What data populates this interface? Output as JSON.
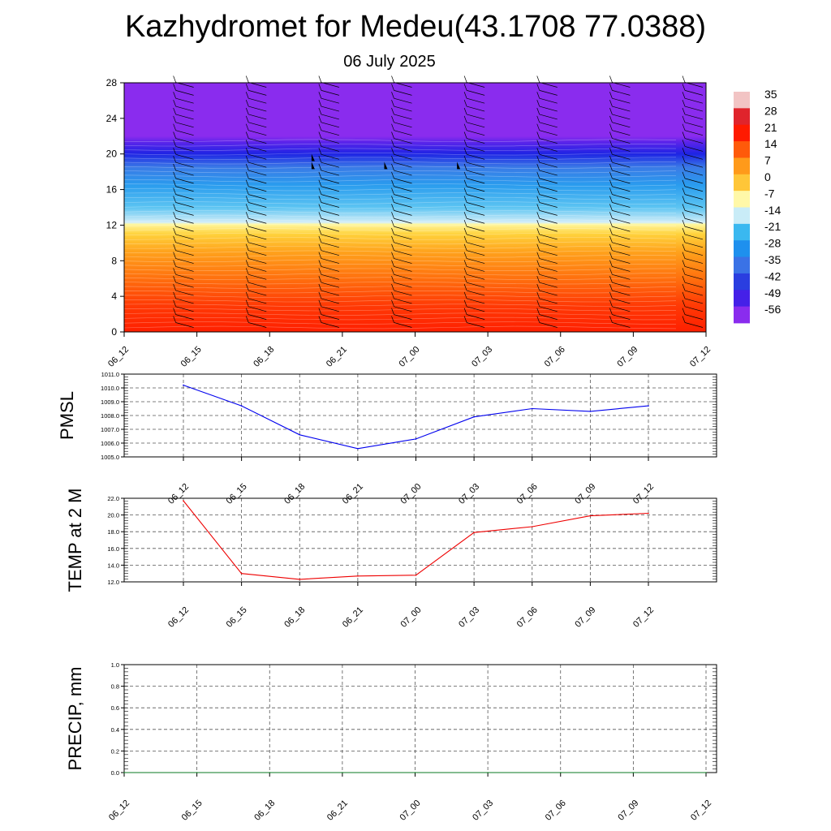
{
  "header": {
    "title": "Kazhydromet for Medeu(43.1708 77.0388)",
    "subtitle": "06 July 2025"
  },
  "chart_data": [
    {
      "type": "heatmap",
      "name": "vertical-profile",
      "x_ticks": [
        "06_12",
        "06_15",
        "06_18",
        "06_21",
        "07_00",
        "07_03",
        "07_06",
        "07_09",
        "07_12"
      ],
      "y_ticks": [
        0,
        4,
        8,
        12,
        16,
        20,
        24,
        28
      ],
      "ylim": [
        0,
        28
      ],
      "colorbar": {
        "labels": [
          35,
          28,
          21,
          14,
          7,
          0,
          -7,
          -14,
          -21,
          -28,
          -35,
          -42,
          -49,
          -56
        ],
        "colors": [
          "#f2c4c4",
          "#e0242c",
          "#ff1a00",
          "#ff5a0a",
          "#ff9a1a",
          "#ffc638",
          "#fff8a8",
          "#c9ecf7",
          "#3ab8f0",
          "#1e90ee",
          "#3a72e6",
          "#2a3ee0",
          "#4520e8",
          "#8a2cee"
        ]
      },
      "profile_stops": [
        {
          "level": 0,
          "color": "#ff1f00"
        },
        {
          "level": 3,
          "color": "#ff3a05"
        },
        {
          "level": 6,
          "color": "#ff700e"
        },
        {
          "level": 9,
          "color": "#ffa21c"
        },
        {
          "level": 11,
          "color": "#ffd23c"
        },
        {
          "level": 12.1,
          "color": "#fff7a0"
        },
        {
          "level": 12.3,
          "color": "#d4eef8"
        },
        {
          "level": 14,
          "color": "#5cc4f2"
        },
        {
          "level": 16.5,
          "color": "#2a9cee"
        },
        {
          "level": 18.5,
          "color": "#3a7ae6"
        },
        {
          "level": 20,
          "color": "#1e24e4"
        },
        {
          "level": 21.3,
          "color": "#5a24ea"
        },
        {
          "level": 22,
          "color": "#8a2cee"
        },
        {
          "level": 28,
          "color": "#8a2cee"
        }
      ],
      "grid": false
    },
    {
      "type": "line",
      "name": "pmsl",
      "ylabel": "PMSL",
      "x": [
        "06_12",
        "06_15",
        "06_18",
        "06_21",
        "07_00",
        "07_03",
        "07_06",
        "07_09",
        "07_12"
      ],
      "series": [
        {
          "values": [
            1010.2,
            1008.7,
            1006.6,
            1005.6,
            1006.3,
            1007.9,
            1008.5,
            1008.3,
            1008.7
          ],
          "color": "#0000ee"
        }
      ],
      "y_ticks": [
        "1005.0",
        "1006.0",
        "1007.0",
        "1008.0",
        "1009.0",
        "1010.0",
        "1011.0"
      ],
      "ylim": [
        1005,
        1011
      ],
      "grid": true
    },
    {
      "type": "line",
      "name": "temp",
      "ylabel": "TEMP at 2 M",
      "x": [
        "06_12",
        "06_15",
        "06_18",
        "06_21",
        "07_00",
        "07_03",
        "07_06",
        "07_09",
        "07_12"
      ],
      "series": [
        {
          "values": [
            21.7,
            13.0,
            12.3,
            12.7,
            12.8,
            17.9,
            18.6,
            19.9,
            20.2
          ],
          "color": "#ee0000"
        }
      ],
      "y_ticks": [
        "12.0",
        "14.0",
        "16.0",
        "18.0",
        "20.0",
        "22.0"
      ],
      "ylim": [
        12,
        22
      ],
      "grid": true
    },
    {
      "type": "line",
      "name": "precip",
      "ylabel": "PRECIP, mm",
      "x": [
        "06_12",
        "06_15",
        "06_18",
        "06_21",
        "07_00",
        "07_03",
        "07_06",
        "07_09",
        "07_12"
      ],
      "series": [
        {
          "values": [
            0,
            0,
            0,
            0,
            0,
            0,
            0,
            0,
            0
          ],
          "color": "#0a7a20"
        }
      ],
      "y_ticks": [
        "0.0",
        "0.2",
        "0.4",
        "0.6",
        "0.8",
        "1.0"
      ],
      "ylim": [
        0,
        1
      ],
      "grid": true
    }
  ]
}
